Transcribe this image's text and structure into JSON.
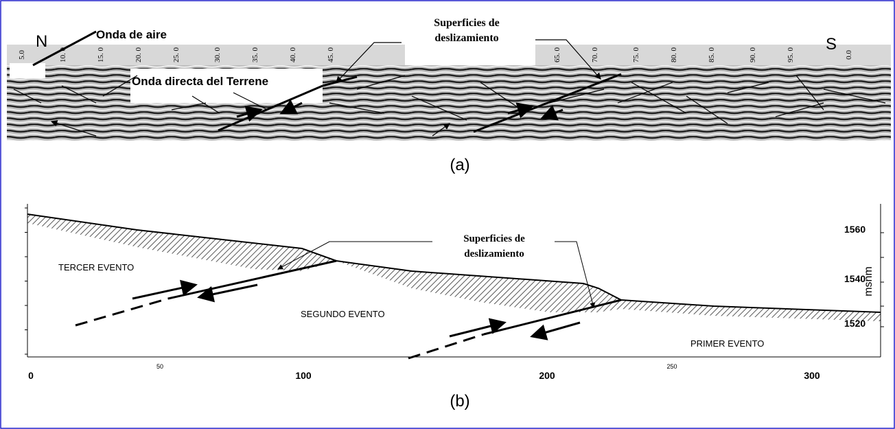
{
  "panel_a": {
    "label": "(a)",
    "north": "N",
    "south": "S",
    "air_wave": "Onda de aire",
    "direct_wave": "Onda directa del Terrene",
    "slip_surfaces": [
      "Superficies de",
      "deslizamiento"
    ],
    "scale": [
      "5.0",
      "10. 0",
      "15. 0",
      "20. 0",
      "25. 0",
      "30. 0",
      "35. 0",
      "40. 0",
      "45. 0",
      "65. 0",
      "70. 0",
      "75. 0",
      "80. 0",
      "85. 0",
      "90. 0",
      "95. 0",
      "0.0"
    ]
  },
  "panel_b": {
    "label": "(b)",
    "slip_surfaces": [
      "Superficies de",
      "deslizamiento"
    ],
    "events": [
      "TERCER EVENTO",
      "SEGUNDO EVENTO",
      "PRIMER EVENTO"
    ],
    "y_axis_title": "msnm",
    "yticks": [
      "1560",
      "1540",
      "1520"
    ],
    "xticks": [
      "0",
      "50",
      "100",
      "200",
      "250",
      "300"
    ]
  }
}
